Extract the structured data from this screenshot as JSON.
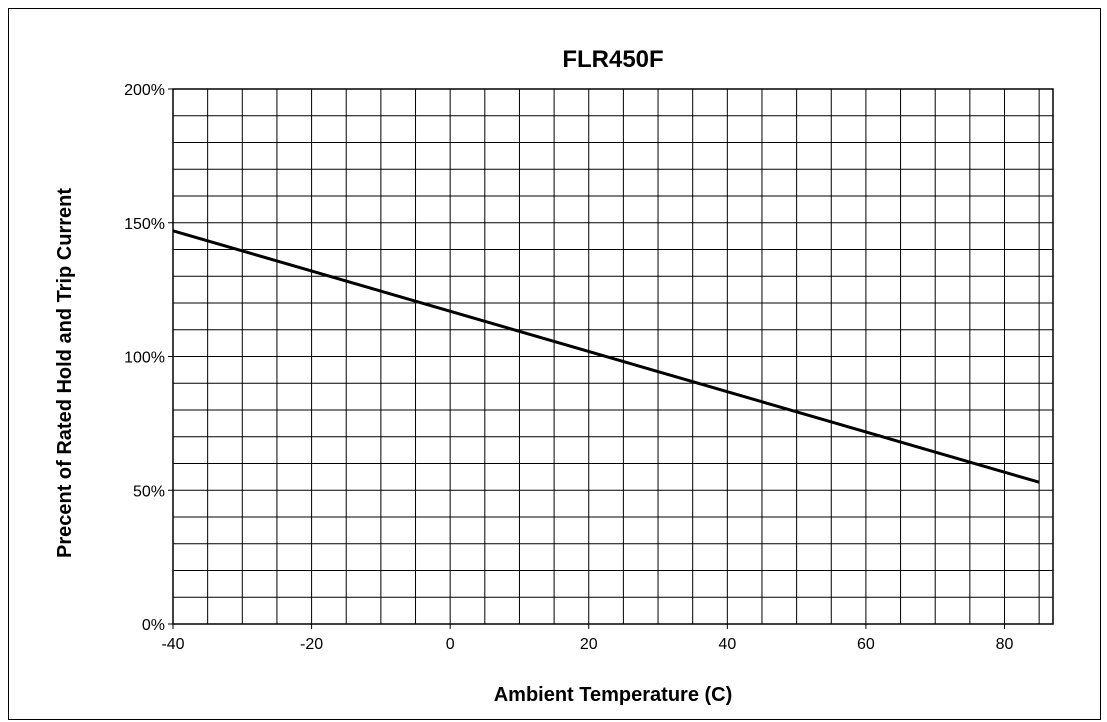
{
  "chart_data": {
    "type": "line",
    "title": "FLR450F",
    "xlabel": "Ambient Temperature (C)",
    "ylabel": "Precent of Rated Hold and Trip Current",
    "xlim": [
      -40,
      87
    ],
    "ylim": [
      0,
      200
    ],
    "x_ticks": [
      -40,
      -20,
      0,
      20,
      40,
      60,
      80
    ],
    "x_tick_labels": [
      "-40",
      "-20",
      "0",
      "20",
      "40",
      "60",
      "80"
    ],
    "y_ticks": [
      0,
      50,
      100,
      150,
      200
    ],
    "y_tick_labels": [
      "0%",
      "50%",
      "100%",
      "150%",
      "200%"
    ],
    "grid": true,
    "x_minor_step": 5,
    "y_minor_step": 10,
    "colors": {
      "line": "#000000",
      "grid": "#000000",
      "background": "#ffffff"
    },
    "series": [
      {
        "x": [
          -40,
          85
        ],
        "y": [
          147,
          53
        ]
      }
    ]
  }
}
